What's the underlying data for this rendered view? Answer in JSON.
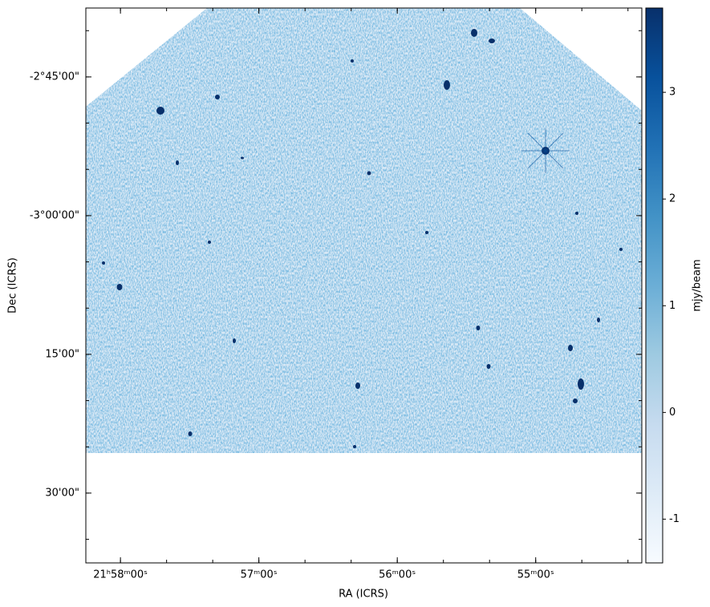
{
  "chart_data": {
    "type": "image",
    "x_label": "RA (ICRS)",
    "y_label": "Dec (ICRS)",
    "colorbar_label": "mjy/beam",
    "xlim": [
      79095,
      78854
    ],
    "xticks": [
      {
        "value": 79080,
        "label": "21ʰ58ᵐ00ˢ"
      },
      {
        "value": 79020,
        "label": "57ᵐ00ˢ"
      },
      {
        "value": 78960,
        "label": "56ᵐ00ˢ"
      },
      {
        "value": 78900,
        "label": "55ᵐ00ˢ"
      }
    ],
    "ylim": [
      -13053,
      -9453
    ],
    "yticks": [
      {
        "value": -9900,
        "label": "-2°45'00\""
      },
      {
        "value": -10800,
        "label": "-3°00'00\""
      },
      {
        "value": -11700,
        "label": "15'00\""
      },
      {
        "value": -12600,
        "label": "30'00\""
      }
    ],
    "clim": [
      -1.41,
      3.79
    ],
    "cticks": [
      -1,
      0,
      1,
      2,
      3
    ]
  }
}
